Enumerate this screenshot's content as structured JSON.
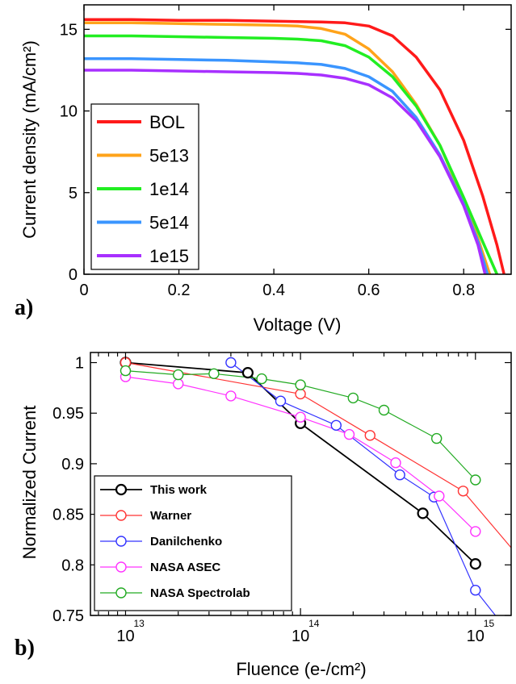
{
  "chart_data": [
    {
      "panel": "a)",
      "type": "line",
      "xlabel": "Voltage (V)",
      "ylabel": "Current density (mA/cm²)",
      "xlim": [
        0,
        0.9
      ],
      "ylim": [
        0,
        16.5
      ],
      "x_ticks": [
        "0",
        "0.2",
        "0.4",
        "0.6",
        "0.8"
      ],
      "y_ticks": [
        "0",
        "5",
        "10",
        "15"
      ],
      "grid": false,
      "legend_position": "bottom-left",
      "series": [
        {
          "name": "BOL",
          "color": "#ff1a1a",
          "Jsc": 15.6,
          "Voc": 0.885,
          "x": [
            0,
            0.1,
            0.2,
            0.3,
            0.4,
            0.5,
            0.55,
            0.6,
            0.65,
            0.7,
            0.75,
            0.8,
            0.84,
            0.87,
            0.885
          ],
          "y": [
            15.6,
            15.6,
            15.55,
            15.55,
            15.5,
            15.45,
            15.4,
            15.2,
            14.6,
            13.3,
            11.3,
            8.2,
            4.8,
            1.8,
            0
          ]
        },
        {
          "name": "5e13",
          "color": "#ffa31a",
          "Jsc": 15.4,
          "Voc": 0.855,
          "x": [
            0,
            0.1,
            0.2,
            0.3,
            0.4,
            0.45,
            0.5,
            0.55,
            0.6,
            0.65,
            0.7,
            0.75,
            0.8,
            0.83,
            0.855
          ],
          "y": [
            15.4,
            15.4,
            15.35,
            15.3,
            15.25,
            15.2,
            15.05,
            14.7,
            13.8,
            12.4,
            10.4,
            7.9,
            4.5,
            2.2,
            0
          ]
        },
        {
          "name": "1e14",
          "color": "#22ee22",
          "Jsc": 14.6,
          "Voc": 0.87,
          "x": [
            0,
            0.1,
            0.2,
            0.3,
            0.4,
            0.45,
            0.5,
            0.55,
            0.6,
            0.65,
            0.7,
            0.75,
            0.8,
            0.84,
            0.87
          ],
          "y": [
            14.6,
            14.6,
            14.55,
            14.5,
            14.45,
            14.4,
            14.3,
            14.0,
            13.3,
            12.1,
            10.3,
            7.9,
            4.7,
            2.0,
            0
          ]
        },
        {
          "name": "5e14",
          "color": "#3a95ff",
          "Jsc": 13.2,
          "Voc": 0.85,
          "x": [
            0,
            0.1,
            0.2,
            0.3,
            0.4,
            0.45,
            0.5,
            0.55,
            0.6,
            0.65,
            0.7,
            0.75,
            0.8,
            0.83,
            0.85
          ],
          "y": [
            13.2,
            13.2,
            13.15,
            13.1,
            13.0,
            12.95,
            12.85,
            12.6,
            12.1,
            11.2,
            9.6,
            7.3,
            4.3,
            2.0,
            0
          ]
        },
        {
          "name": "1e15",
          "color": "#a830ff",
          "Jsc": 12.5,
          "Voc": 0.845,
          "x": [
            0,
            0.1,
            0.2,
            0.3,
            0.4,
            0.45,
            0.5,
            0.55,
            0.6,
            0.65,
            0.7,
            0.75,
            0.8,
            0.83,
            0.845
          ],
          "y": [
            12.5,
            12.5,
            12.45,
            12.4,
            12.35,
            12.3,
            12.2,
            12.0,
            11.6,
            10.8,
            9.4,
            7.2,
            4.2,
            1.8,
            0
          ]
        }
      ]
    },
    {
      "panel": "b)",
      "type": "line",
      "xlabel": "Fluence (e-/cm²)",
      "ylabel": "Normalized Current",
      "xscale": "log",
      "xlim": [
        6300000000000.0,
        1600000000000000.0
      ],
      "ylim": [
        0.75,
        1.01
      ],
      "x_ticks": [
        {
          "base": "10",
          "exp": "13"
        },
        {
          "base": "10",
          "exp": "14"
        },
        {
          "base": "10",
          "exp": "15"
        }
      ],
      "y_ticks": [
        "0.75",
        "0.8",
        "0.85",
        "0.9",
        "0.95",
        "1"
      ],
      "grid": false,
      "legend_position": "bottom-left",
      "series": [
        {
          "name": "This work",
          "color": "#000000",
          "x": [
            10000000000000.0,
            50000000000000.0,
            100000000000000.0,
            500000000000000.0,
            1000000000000000.0
          ],
          "y": [
            1.0,
            0.99,
            0.94,
            0.851,
            0.801
          ],
          "line_x": [
            10000000000000.0,
            50000000000000.0,
            100000000000000.0,
            500000000000000.0,
            1000000000000000.0
          ],
          "line_y": [
            1.0,
            0.99,
            0.94,
            0.851,
            0.801
          ]
        },
        {
          "name": "Warner",
          "color": "#ff3333",
          "x": [
            10000000000000.0,
            100000000000000.0,
            250000000000000.0,
            850000000000000.0
          ],
          "y": [
            1.0,
            0.969,
            0.928,
            0.873
          ],
          "line_x": [
            10000000000000.0,
            100000000000000.0,
            250000000000000.0,
            850000000000000.0,
            1600000000000000.0
          ],
          "line_y": [
            1.0,
            0.969,
            0.928,
            0.873,
            0.817
          ]
        },
        {
          "name": "Danilchenko",
          "color": "#3333ff",
          "x": [
            40000000000000.0,
            77000000000000.0,
            160000000000000.0,
            370000000000000.0,
            580000000000000.0,
            1000000000000000.0
          ],
          "y": [
            1.0,
            0.962,
            0.938,
            0.889,
            0.867,
            0.775
          ],
          "line_x": [
            40000000000000.0,
            77000000000000.0,
            160000000000000.0,
            370000000000000.0,
            580000000000000.0,
            1000000000000000.0,
            1300000000000000.0
          ],
          "line_y": [
            1.0,
            0.962,
            0.938,
            0.889,
            0.867,
            0.775,
            0.75
          ]
        },
        {
          "name": "NASA ASEC",
          "color": "#ff33ff",
          "x": [
            10000000000000.0,
            20000000000000.0,
            40000000000000.0,
            100000000000000.0,
            190000000000000.0,
            350000000000000.0,
            620000000000000.0,
            1000000000000000.0
          ],
          "y": [
            0.986,
            0.979,
            0.967,
            0.946,
            0.929,
            0.901,
            0.868,
            0.833
          ],
          "line_x": [
            10000000000000.0,
            20000000000000.0,
            40000000000000.0,
            100000000000000.0,
            190000000000000.0,
            350000000000000.0,
            620000000000000.0,
            1000000000000000.0
          ],
          "line_y": [
            0.986,
            0.979,
            0.967,
            0.946,
            0.929,
            0.901,
            0.868,
            0.833
          ]
        },
        {
          "name": "NASA Spectrolab",
          "color": "#22aa22",
          "x": [
            10000000000000.0,
            20000000000000.0,
            32000000000000.0,
            60000000000000.0,
            100000000000000.0,
            200000000000000.0,
            300000000000000.0,
            600000000000000.0,
            1000000000000000.0
          ],
          "y": [
            0.992,
            0.988,
            0.989,
            0.984,
            0.978,
            0.965,
            0.953,
            0.925,
            0.884
          ],
          "line_x": [
            10000000000000.0,
            20000000000000.0,
            32000000000000.0,
            60000000000000.0,
            100000000000000.0,
            200000000000000.0,
            300000000000000.0,
            600000000000000.0,
            1000000000000000.0
          ],
          "line_y": [
            0.992,
            0.988,
            0.989,
            0.984,
            0.978,
            0.965,
            0.953,
            0.925,
            0.884
          ]
        }
      ]
    }
  ]
}
